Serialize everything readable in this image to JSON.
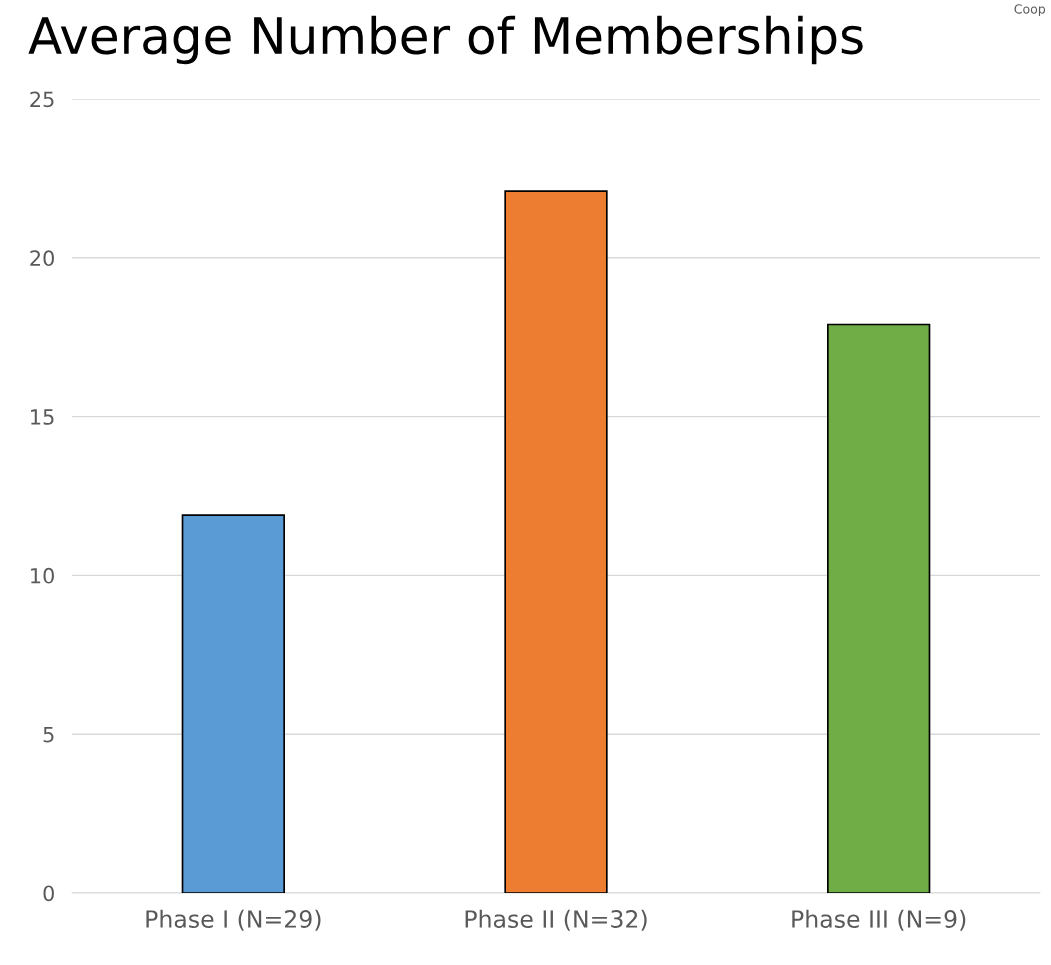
{
  "chart_data": {
    "type": "bar",
    "title": "Average Number of Memberships",
    "categories": [
      "Phase I (N=29)",
      "Phase II (N=32)",
      "Phase III (N=9)"
    ],
    "values": [
      11.9,
      22.1,
      17.9
    ],
    "colors": [
      "#5b9bd5",
      "#ed7d31",
      "#70ad47"
    ],
    "ylim": [
      0,
      25
    ],
    "yticks": [
      0,
      5,
      10,
      15,
      20,
      25
    ],
    "grid": "y",
    "annotations": [
      "Coop"
    ]
  }
}
